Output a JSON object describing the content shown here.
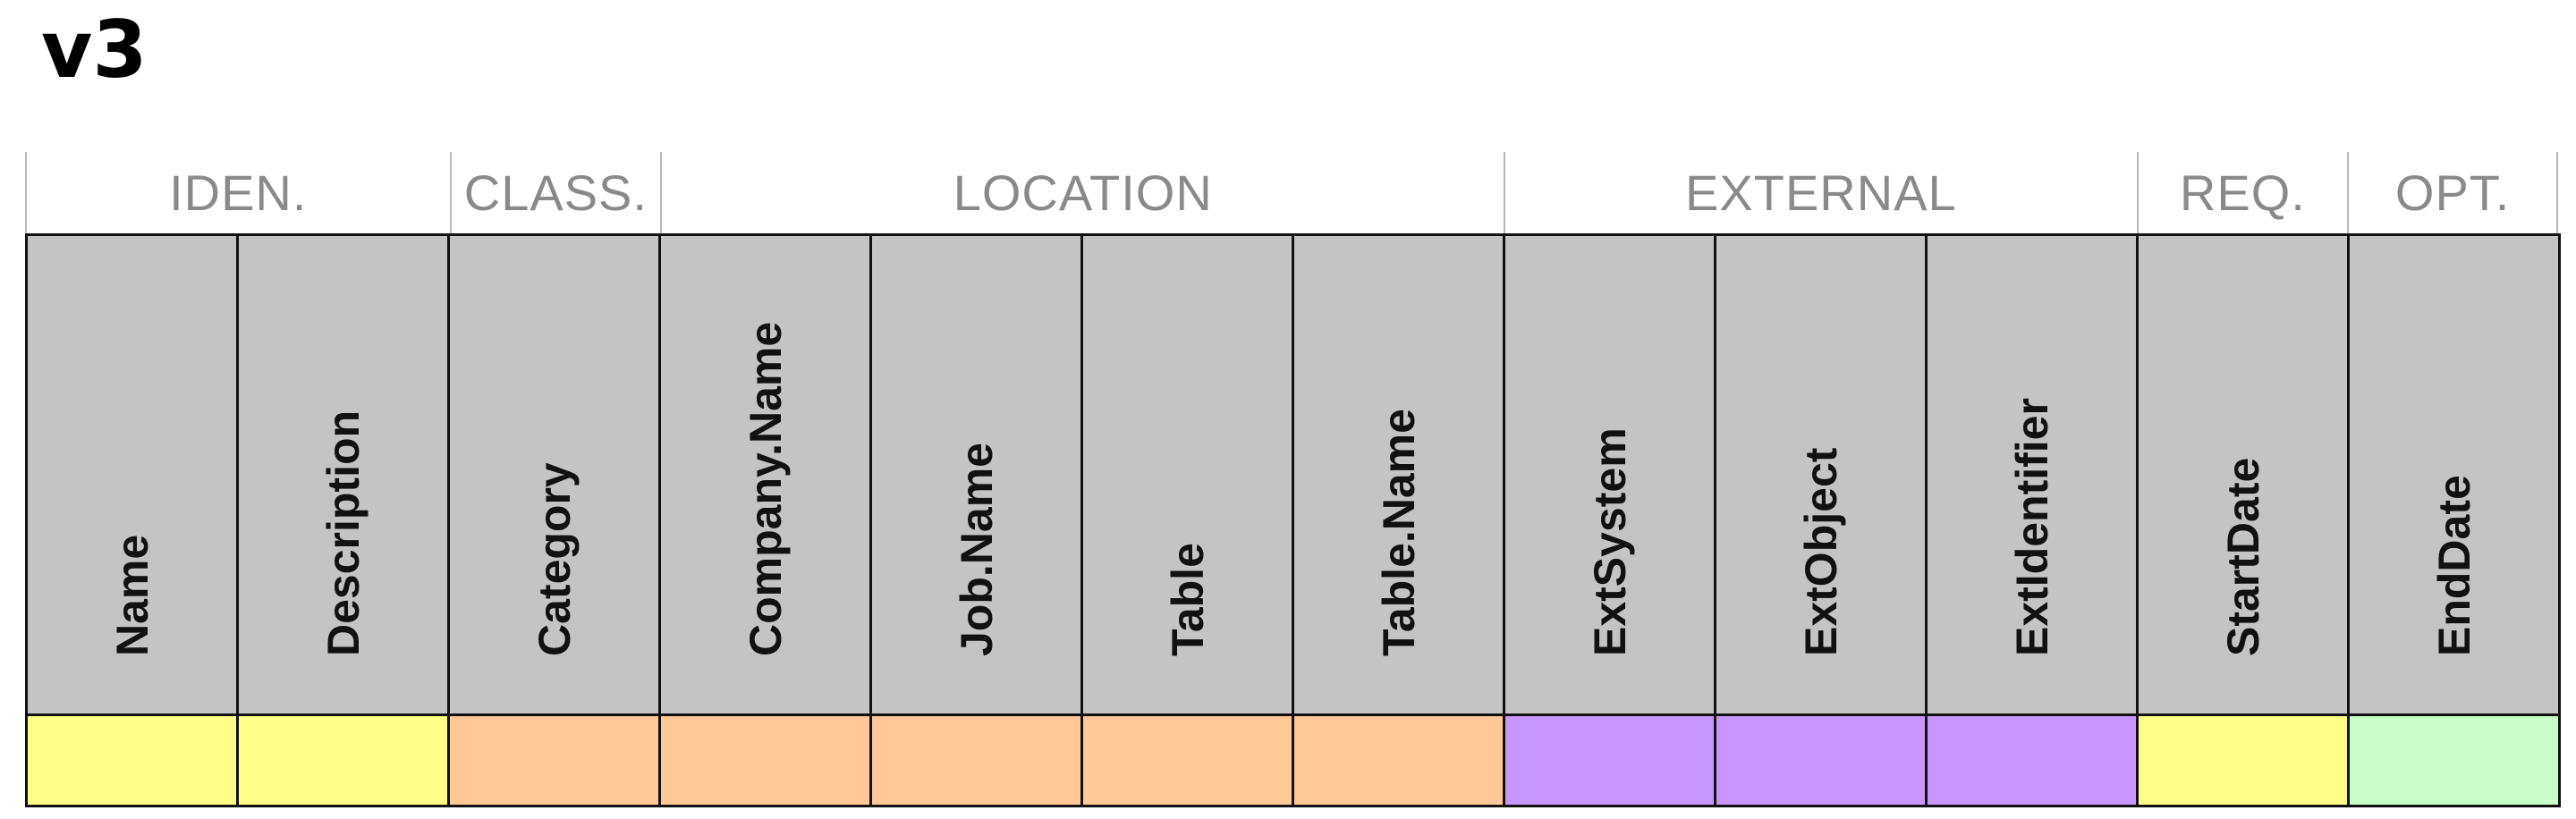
{
  "title": "v3",
  "groups": [
    {
      "label": "IDEN.",
      "span": 2
    },
    {
      "label": "CLASS.",
      "span": 1
    },
    {
      "label": "LOCATION",
      "span": 4
    },
    {
      "label": "EXTERNAL",
      "span": 3
    },
    {
      "label": "REQ.",
      "span": 1
    },
    {
      "label": "OPT.",
      "span": 1
    }
  ],
  "columns": [
    {
      "label": "Name",
      "color": "#ffff88"
    },
    {
      "label": "Description",
      "color": "#ffff88"
    },
    {
      "label": "Category",
      "color": "#ffc896"
    },
    {
      "label": "Company.Name",
      "color": "#ffc896"
    },
    {
      "label": "Job.Name",
      "color": "#ffc896"
    },
    {
      "label": "Table",
      "color": "#ffc896"
    },
    {
      "label": "Table.Name",
      "color": "#ffc896"
    },
    {
      "label": "ExtSystem",
      "color": "#c896ff"
    },
    {
      "label": "ExtObject",
      "color": "#c896ff"
    },
    {
      "label": "ExtIdentifier",
      "color": "#c896ff"
    },
    {
      "label": "StartDate",
      "color": "#ffff88"
    },
    {
      "label": "EndDate",
      "color": "#c8ffc8"
    }
  ]
}
